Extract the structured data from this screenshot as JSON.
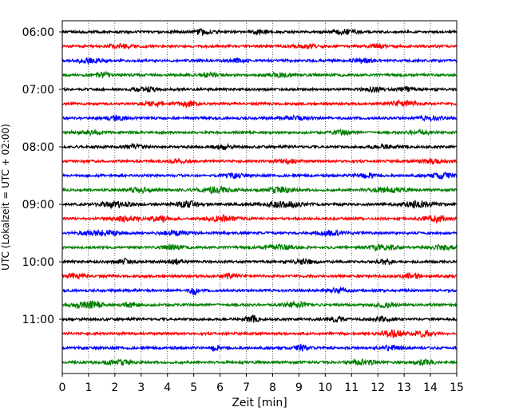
{
  "chart_data": {
    "type": "line",
    "xlabel": "Zeit  [min]",
    "ylabel": "UTC (Lokalzeit = UTC + 02:00)",
    "xlim": [
      0,
      15
    ],
    "x_ticks": [
      0,
      1,
      2,
      3,
      4,
      5,
      6,
      7,
      8,
      9,
      10,
      11,
      12,
      13,
      14,
      15
    ],
    "y_tick_labels": [
      "06:00",
      "07:00",
      "08:00",
      "09:00",
      "10:00",
      "11:00"
    ],
    "grid": "vertical dotted lines at each minute",
    "trace_minutes": 15,
    "trace_start": "06:00",
    "trace_count": 24,
    "color_cycle": [
      "#000000",
      "#ff0000",
      "#0000ff",
      "#008000"
    ],
    "series": [
      {
        "start": "06:00",
        "color": "#000000",
        "bursts": [
          [
            5.3,
            0.4,
            1.5
          ],
          [
            7.5,
            0.3,
            1.3
          ],
          [
            10.8,
            0.5,
            1.5
          ]
        ]
      },
      {
        "start": "06:15",
        "color": "#ff0000",
        "bursts": [
          [
            2.2,
            0.5,
            1.2
          ],
          [
            9.3,
            0.4,
            1.3
          ],
          [
            12.0,
            0.3,
            1.4
          ]
        ]
      },
      {
        "start": "06:30",
        "color": "#0000ff",
        "bursts": [
          [
            1.0,
            0.5,
            1.3
          ],
          [
            6.7,
            0.4,
            1.2
          ],
          [
            11.4,
            0.4,
            1.5
          ]
        ]
      },
      {
        "start": "06:45",
        "color": "#008000",
        "bursts": [
          [
            1.5,
            0.3,
            1.6
          ],
          [
            5.6,
            0.4,
            1.2
          ],
          [
            8.2,
            0.5,
            1.2
          ]
        ]
      },
      {
        "start": "07:00",
        "color": "#000000",
        "bursts": [
          [
            3.2,
            0.5,
            1.3
          ],
          [
            11.8,
            0.4,
            1.5
          ],
          [
            13.1,
            0.3,
            1.3
          ]
        ]
      },
      {
        "start": "07:15",
        "color": "#ff0000",
        "bursts": [
          [
            3.4,
            0.4,
            1.8
          ],
          [
            4.7,
            0.4,
            1.6
          ],
          [
            13.0,
            0.5,
            1.8
          ]
        ]
      },
      {
        "start": "07:30",
        "color": "#0000ff",
        "bursts": [
          [
            2.1,
            0.4,
            1.3
          ],
          [
            9.0,
            0.5,
            1.2
          ],
          [
            14.0,
            0.4,
            1.3
          ]
        ]
      },
      {
        "start": "07:45",
        "color": "#008000",
        "bursts": [
          [
            1.0,
            0.5,
            1.2
          ],
          [
            10.7,
            0.4,
            1.3
          ],
          [
            13.6,
            0.4,
            1.2
          ]
        ]
      },
      {
        "start": "08:00",
        "color": "#000000",
        "bursts": [
          [
            2.7,
            0.4,
            1.2
          ],
          [
            6.1,
            0.4,
            1.3
          ],
          [
            12.2,
            0.5,
            1.2
          ]
        ]
      },
      {
        "start": "08:15",
        "color": "#ff0000",
        "bursts": [
          [
            4.4,
            0.4,
            1.3
          ],
          [
            8.6,
            0.4,
            1.2
          ],
          [
            14.1,
            0.5,
            1.4
          ]
        ]
      },
      {
        "start": "08:30",
        "color": "#0000ff",
        "bursts": [
          [
            6.5,
            0.4,
            1.3
          ],
          [
            11.5,
            0.4,
            1.6
          ],
          [
            14.5,
            0.5,
            1.7
          ]
        ]
      },
      {
        "start": "08:45",
        "color": "#008000",
        "bursts": [
          [
            2.9,
            0.5,
            1.6
          ],
          [
            5.8,
            0.6,
            1.8
          ],
          [
            8.3,
            0.5,
            1.7
          ],
          [
            12.4,
            0.6,
            1.7
          ]
        ]
      },
      {
        "start": "09:00",
        "color": "#000000",
        "bursts": [
          [
            2.0,
            0.6,
            1.8
          ],
          [
            4.8,
            0.5,
            1.8
          ],
          [
            8.5,
            0.7,
            1.9
          ],
          [
            13.5,
            0.6,
            2.0
          ]
        ]
      },
      {
        "start": "09:15",
        "color": "#ff0000",
        "bursts": [
          [
            2.4,
            0.5,
            1.7
          ],
          [
            3.7,
            0.4,
            1.9
          ],
          [
            6.1,
            0.6,
            1.8
          ],
          [
            14.2,
            0.5,
            2.0
          ]
        ]
      },
      {
        "start": "09:30",
        "color": "#0000ff",
        "bursts": [
          [
            1.4,
            0.7,
            1.8
          ],
          [
            4.3,
            0.5,
            1.5
          ],
          [
            10.2,
            0.5,
            1.4
          ]
        ]
      },
      {
        "start": "09:45",
        "color": "#008000",
        "bursts": [
          [
            4.2,
            0.4,
            1.3
          ],
          [
            8.2,
            0.6,
            1.4
          ],
          [
            12.2,
            0.6,
            1.6
          ],
          [
            14.5,
            0.4,
            1.7
          ]
        ]
      },
      {
        "start": "10:00",
        "color": "#000000",
        "bursts": [
          [
            2.4,
            0.3,
            1.8
          ],
          [
            4.3,
            0.3,
            1.8
          ],
          [
            9.2,
            0.4,
            1.6
          ],
          [
            12.3,
            0.3,
            1.9
          ]
        ]
      },
      {
        "start": "10:15",
        "color": "#ff0000",
        "bursts": [
          [
            0.5,
            0.4,
            1.4
          ],
          [
            6.4,
            0.3,
            1.6
          ],
          [
            13.3,
            0.3,
            1.9
          ]
        ]
      },
      {
        "start": "10:30",
        "color": "#0000ff",
        "bursts": [
          [
            5.0,
            0.12,
            3.8
          ],
          [
            10.5,
            0.4,
            1.3
          ]
        ]
      },
      {
        "start": "10:45",
        "color": "#008000",
        "bursts": [
          [
            0.7,
            0.4,
            1.9
          ],
          [
            1.3,
            0.3,
            1.8
          ],
          [
            2.6,
            0.3,
            1.8
          ],
          [
            8.9,
            0.5,
            1.7
          ],
          [
            12.3,
            0.4,
            1.6
          ]
        ]
      },
      {
        "start": "11:00",
        "color": "#000000",
        "bursts": [
          [
            7.2,
            0.25,
            2.2
          ],
          [
            10.4,
            0.4,
            1.3
          ],
          [
            12.2,
            0.4,
            1.4
          ]
        ]
      },
      {
        "start": "11:15",
        "color": "#ff0000",
        "bursts": [
          [
            12.6,
            0.5,
            2.2
          ],
          [
            13.8,
            0.4,
            1.9
          ]
        ]
      },
      {
        "start": "11:30",
        "color": "#0000ff",
        "bursts": [
          [
            5.8,
            0.15,
            2.4
          ],
          [
            9.1,
            0.25,
            2.2
          ],
          [
            12.5,
            0.4,
            1.4
          ]
        ]
      },
      {
        "start": "11:45",
        "color": "#008000",
        "bursts": [
          [
            2.1,
            0.5,
            1.4
          ],
          [
            11.4,
            0.5,
            1.6
          ],
          [
            13.7,
            0.4,
            1.4
          ]
        ]
      }
    ]
  }
}
